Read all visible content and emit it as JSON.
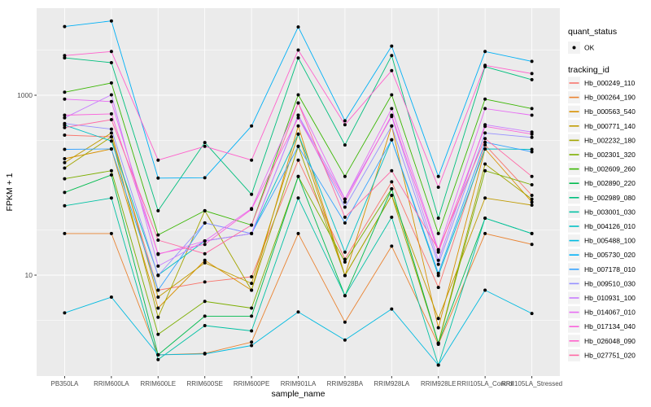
{
  "figure": {
    "panel_bg": "#EBEBEB",
    "grid_color": "#FFFFFF",
    "tick_color": "#333333",
    "axis_text_color": "#4D4D4D",
    "title_text_color": "#000000",
    "legend_key_bg": "#F2F2F2",
    "point_color": "#000000"
  },
  "chart_data": {
    "type": "line",
    "title": "",
    "xlabel": "sample_name",
    "ylabel": "FPKM + 1",
    "y_scale": "log10",
    "y_ticks": [
      10,
      1000
    ],
    "y_tick_labels": [
      "10",
      "1000"
    ],
    "ylim": [
      0.8,
      9000
    ],
    "grid": true,
    "legend_position": "right",
    "categories": [
      "PB350LA",
      "RRIM600LA",
      "RRIM600LE",
      "RRIM600SE",
      "RRIM600PE",
      "RRIM901LA",
      "RRIM928BA",
      "RRIM928LA",
      "RRIM928LE",
      "RRII105LA_Control",
      "RRII105LA_Stressed"
    ],
    "legend": {
      "quant_status_title": "quant_status",
      "quant_status_items": [
        "OK"
      ],
      "tracking_id_title": "tracking_id"
    },
    "series": [
      {
        "name": "Hb_000249_110",
        "color": "#F8766D",
        "values": [
          360,
          345,
          6.8,
          8.4,
          9.6,
          190,
          15,
          109,
          7.3,
          280,
          77
        ]
      },
      {
        "name": "Hb_000264_190",
        "color": "#EA8331",
        "values": [
          29,
          29,
          1.3,
          1.35,
          1.8,
          29,
          3.0,
          21,
          1.7,
          29,
          22
        ]
      },
      {
        "name": "Hb_000563_540",
        "color": "#D89000",
        "values": [
          197,
          253,
          4.3,
          14.6,
          6.8,
          455,
          9.9,
          455,
          2.6,
          253,
          65
        ]
      },
      {
        "name": "Hb_000771_140",
        "color": "#C09B00",
        "values": [
          178,
          380,
          5.7,
          13.7,
          8.1,
          370,
          9.9,
          77,
          3.3,
          72,
          60
        ]
      },
      {
        "name": "Hb_002232_180",
        "color": "#A3A500",
        "values": [
          155,
          345,
          3.4,
          52,
          6.8,
          270,
          9.9,
          77,
          1.75,
          172,
          70
        ]
      },
      {
        "name": "Hb_002301_320",
        "color": "#7CAE00",
        "values": [
          118,
          145,
          2.2,
          5.1,
          4.3,
          125,
          14,
          91,
          1.75,
          145,
          101
        ]
      },
      {
        "name": "Hb_002609_260",
        "color": "#39B600",
        "values": [
          1080,
          1370,
          28,
          52,
          36,
          1010,
          125,
          1010,
          29,
          905,
          710
        ]
      },
      {
        "name": "Hb_002890_220",
        "color": "#00BB4E",
        "values": [
          83,
          130,
          1.3,
          3.5,
          3.5,
          125,
          5.9,
          91,
          1.75,
          43,
          29
        ]
      },
      {
        "name": "Hb_002989_080",
        "color": "#00BF7D",
        "values": [
          2600,
          2300,
          52,
          298,
          79,
          2590,
          280,
          2760,
          43,
          2080,
          1490
        ]
      },
      {
        "name": "Hb_003001_030",
        "color": "#00C1A3",
        "values": [
          59,
          72,
          1.15,
          2.75,
          2.4,
          72,
          5.9,
          44,
          1.0,
          43,
          29
        ]
      },
      {
        "name": "Hb_004126_010",
        "color": "#00BFC4",
        "values": [
          465,
          310,
          10,
          24,
          29,
          370,
          18,
          320,
          9.9,
          253,
          250
        ]
      },
      {
        "name": "Hb_005488_100",
        "color": "#00BAE0",
        "values": [
          3.8,
          5.7,
          1.3,
          1.33,
          1.65,
          3.9,
          1.9,
          4.2,
          1.0,
          6.8,
          3.75
        ]
      },
      {
        "name": "Hb_005730_020",
        "color": "#00B0F6",
        "values": [
          5800,
          6700,
          120,
          121,
          455,
          5750,
          520,
          3520,
          125,
          3060,
          2380
        ]
      },
      {
        "name": "Hb_007178_010",
        "color": "#35A2FF",
        "values": [
          250,
          253,
          6.8,
          38,
          29,
          270,
          38,
          320,
          10.5,
          300,
          235
        ]
      },
      {
        "name": "Hb_009510_030",
        "color": "#9590FF",
        "values": [
          485,
          420,
          9.9,
          38,
          29,
          600,
          57,
          455,
          13.2,
          380,
          340
        ]
      },
      {
        "name": "Hb_010931_100",
        "color": "#C77CFF",
        "values": [
          560,
          1010,
          12.6,
          24,
          29,
          600,
          70,
          580,
          14.6,
          470,
          390
        ]
      },
      {
        "name": "Hb_014067_010",
        "color": "#E76BF3",
        "values": [
          905,
          850,
          17,
          24,
          55,
          820,
          70,
          710,
          19,
          710,
          600
        ]
      },
      {
        "name": "Hb_017134_040",
        "color": "#FA62DB",
        "values": [
          600,
          620,
          17.3,
          22,
          54,
          560,
          65,
          600,
          18,
          450,
          370
        ]
      },
      {
        "name": "Hb_026048_090",
        "color": "#FF61CC",
        "values": [
          2760,
          3060,
          190,
          270,
          190,
          3180,
          470,
          1880,
          95,
          2150,
          1740
        ]
      },
      {
        "name": "Hb_027751_020",
        "color": "#FF67A4",
        "values": [
          437,
          535,
          24.5,
          17.3,
          36,
          820,
          44,
          145,
          19.2,
          330,
          125
        ]
      }
    ]
  }
}
